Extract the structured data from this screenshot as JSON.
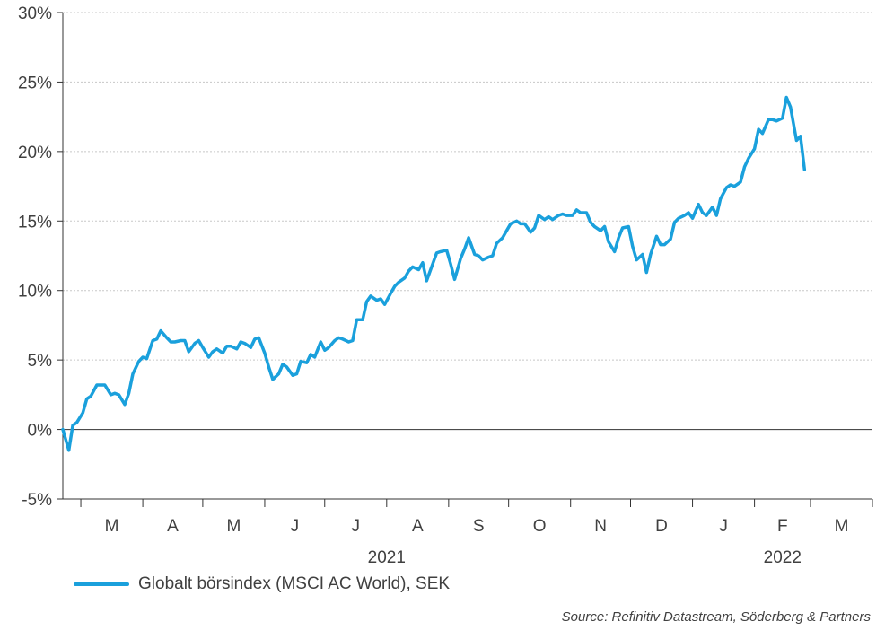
{
  "chart_data": {
    "type": "line",
    "y_ticks": [
      "-5%",
      "0%",
      "5%",
      "10%",
      "15%",
      "20%",
      "25%",
      "30%"
    ],
    "y_tick_values": [
      -5,
      0,
      5,
      10,
      15,
      20,
      25,
      30
    ],
    "ylim": [
      -5,
      30
    ],
    "x_month_labels": [
      "M",
      "A",
      "M",
      "J",
      "J",
      "A",
      "S",
      "O",
      "N",
      "D",
      "J",
      "F",
      "M"
    ],
    "x_year_labels": [
      "2021",
      "2022"
    ],
    "xlim": [
      "2021-02-19",
      "2022-03-31"
    ],
    "grid": "horizontal dotted",
    "legend_position": "bottom-left",
    "series": [
      {
        "name": "Globalt börsindex (MSCI AC World), SEK",
        "color": "#1aa0dc",
        "points": [
          [
            "2021-02-19",
            0.0
          ],
          [
            "2021-02-22",
            -1.5
          ],
          [
            "2021-02-24",
            0.3
          ],
          [
            "2021-02-26",
            0.5
          ],
          [
            "2021-03-01",
            1.2
          ],
          [
            "2021-03-03",
            2.2
          ],
          [
            "2021-03-05",
            2.4
          ],
          [
            "2021-03-08",
            3.2
          ],
          [
            "2021-03-10",
            3.2
          ],
          [
            "2021-03-12",
            3.2
          ],
          [
            "2021-03-15",
            2.5
          ],
          [
            "2021-03-17",
            2.6
          ],
          [
            "2021-03-19",
            2.5
          ],
          [
            "2021-03-22",
            1.8
          ],
          [
            "2021-03-24",
            2.6
          ],
          [
            "2021-03-26",
            4.0
          ],
          [
            "2021-03-29",
            4.9
          ],
          [
            "2021-03-31",
            5.2
          ],
          [
            "2021-04-02",
            5.1
          ],
          [
            "2021-04-05",
            6.4
          ],
          [
            "2021-04-07",
            6.5
          ],
          [
            "2021-04-09",
            7.1
          ],
          [
            "2021-04-12",
            6.6
          ],
          [
            "2021-04-14",
            6.3
          ],
          [
            "2021-04-16",
            6.3
          ],
          [
            "2021-04-19",
            6.4
          ],
          [
            "2021-04-21",
            6.4
          ],
          [
            "2021-04-23",
            5.6
          ],
          [
            "2021-04-26",
            6.2
          ],
          [
            "2021-04-28",
            6.4
          ],
          [
            "2021-04-30",
            5.9
          ],
          [
            "2021-05-03",
            5.2
          ],
          [
            "2021-05-05",
            5.6
          ],
          [
            "2021-05-07",
            5.8
          ],
          [
            "2021-05-10",
            5.5
          ],
          [
            "2021-05-12",
            6.0
          ],
          [
            "2021-05-14",
            6.0
          ],
          [
            "2021-05-17",
            5.8
          ],
          [
            "2021-05-19",
            6.3
          ],
          [
            "2021-05-21",
            6.2
          ],
          [
            "2021-05-24",
            5.9
          ],
          [
            "2021-05-26",
            6.5
          ],
          [
            "2021-05-28",
            6.6
          ],
          [
            "2021-05-31",
            5.5
          ],
          [
            "2021-06-02",
            4.5
          ],
          [
            "2021-06-04",
            3.6
          ],
          [
            "2021-06-07",
            4.0
          ],
          [
            "2021-06-09",
            4.7
          ],
          [
            "2021-06-11",
            4.5
          ],
          [
            "2021-06-14",
            3.9
          ],
          [
            "2021-06-16",
            4.0
          ],
          [
            "2021-06-18",
            4.9
          ],
          [
            "2021-06-21",
            4.8
          ],
          [
            "2021-06-23",
            5.4
          ],
          [
            "2021-06-25",
            5.2
          ],
          [
            "2021-06-28",
            6.3
          ],
          [
            "2021-06-30",
            5.7
          ],
          [
            "2021-07-02",
            5.9
          ],
          [
            "2021-07-05",
            6.4
          ],
          [
            "2021-07-07",
            6.6
          ],
          [
            "2021-07-09",
            6.5
          ],
          [
            "2021-07-12",
            6.3
          ],
          [
            "2021-07-14",
            6.4
          ],
          [
            "2021-07-16",
            7.9
          ],
          [
            "2021-07-19",
            7.9
          ],
          [
            "2021-07-21",
            9.2
          ],
          [
            "2021-07-23",
            9.6
          ],
          [
            "2021-07-26",
            9.3
          ],
          [
            "2021-07-28",
            9.4
          ],
          [
            "2021-07-30",
            9.0
          ],
          [
            "2021-08-02",
            9.8
          ],
          [
            "2021-08-04",
            10.3
          ],
          [
            "2021-08-06",
            10.6
          ],
          [
            "2021-08-09",
            10.9
          ],
          [
            "2021-08-11",
            11.4
          ],
          [
            "2021-08-13",
            11.7
          ],
          [
            "2021-08-16",
            11.5
          ],
          [
            "2021-08-18",
            12.0
          ],
          [
            "2021-08-20",
            10.7
          ],
          [
            "2021-08-23",
            11.9
          ],
          [
            "2021-08-25",
            12.7
          ],
          [
            "2021-08-27",
            12.8
          ],
          [
            "2021-08-30",
            12.9
          ],
          [
            "2021-09-01",
            11.9
          ],
          [
            "2021-09-03",
            10.8
          ],
          [
            "2021-09-06",
            12.3
          ],
          [
            "2021-09-08",
            13.0
          ],
          [
            "2021-09-10",
            13.8
          ],
          [
            "2021-09-13",
            12.6
          ],
          [
            "2021-09-15",
            12.5
          ],
          [
            "2021-09-17",
            12.2
          ],
          [
            "2021-09-20",
            12.4
          ],
          [
            "2021-09-22",
            12.5
          ],
          [
            "2021-09-24",
            13.4
          ],
          [
            "2021-09-27",
            13.8
          ],
          [
            "2021-09-29",
            14.3
          ],
          [
            "2021-10-01",
            14.8
          ],
          [
            "2021-10-04",
            15.0
          ],
          [
            "2021-10-06",
            14.8
          ],
          [
            "2021-10-08",
            14.8
          ],
          [
            "2021-10-11",
            14.2
          ],
          [
            "2021-10-13",
            14.5
          ],
          [
            "2021-10-15",
            15.4
          ],
          [
            "2021-10-18",
            15.1
          ],
          [
            "2021-10-20",
            15.3
          ],
          [
            "2021-10-22",
            15.1
          ],
          [
            "2021-10-25",
            15.4
          ],
          [
            "2021-10-27",
            15.5
          ],
          [
            "2021-10-29",
            15.4
          ],
          [
            "2021-11-01",
            15.4
          ],
          [
            "2021-11-03",
            15.8
          ],
          [
            "2021-11-05",
            15.6
          ],
          [
            "2021-11-08",
            15.6
          ],
          [
            "2021-11-10",
            14.9
          ],
          [
            "2021-11-12",
            14.6
          ],
          [
            "2021-11-15",
            14.3
          ],
          [
            "2021-11-17",
            14.6
          ],
          [
            "2021-11-19",
            13.5
          ],
          [
            "2021-11-22",
            12.8
          ],
          [
            "2021-11-24",
            13.8
          ],
          [
            "2021-11-26",
            14.5
          ],
          [
            "2021-11-29",
            14.6
          ],
          [
            "2021-12-01",
            13.2
          ],
          [
            "2021-12-03",
            12.2
          ],
          [
            "2021-12-06",
            12.6
          ],
          [
            "2021-12-08",
            11.3
          ],
          [
            "2021-12-10",
            12.6
          ],
          [
            "2021-12-13",
            13.9
          ],
          [
            "2021-12-15",
            13.3
          ],
          [
            "2021-12-17",
            13.3
          ],
          [
            "2021-12-20",
            13.7
          ],
          [
            "2021-12-22",
            14.9
          ],
          [
            "2021-12-24",
            15.2
          ],
          [
            "2021-12-27",
            15.4
          ],
          [
            "2021-12-29",
            15.6
          ],
          [
            "2021-12-31",
            15.2
          ],
          [
            "2022-01-03",
            16.2
          ],
          [
            "2022-01-05",
            15.6
          ],
          [
            "2022-01-07",
            15.4
          ],
          [
            "2022-01-10",
            16.0
          ],
          [
            "2022-01-12",
            15.4
          ],
          [
            "2022-01-14",
            16.6
          ],
          [
            "2022-01-17",
            17.4
          ],
          [
            "2022-01-19",
            17.6
          ],
          [
            "2022-01-21",
            17.5
          ],
          [
            "2022-01-24",
            17.8
          ],
          [
            "2022-01-26",
            18.9
          ],
          [
            "2022-01-28",
            19.5
          ],
          [
            "2022-01-31",
            20.2
          ],
          [
            "2022-02-02",
            21.6
          ],
          [
            "2022-02-04",
            21.3
          ],
          [
            "2022-02-07",
            22.3
          ],
          [
            "2022-02-09",
            22.3
          ],
          [
            "2022-02-11",
            22.2
          ],
          [
            "2022-02-14",
            22.4
          ],
          [
            "2022-02-16",
            23.9
          ],
          [
            "2022-02-18",
            23.2
          ],
          [
            "2022-02-21",
            20.8
          ],
          [
            "2022-02-23",
            21.1
          ],
          [
            "2022-02-25",
            18.7
          ]
        ]
      }
    ],
    "source_text": "Source: Refinitiv Datastream, Söderberg & Partners"
  },
  "colors": {
    "line": "#1aa0dc",
    "axis": "#333333",
    "grid": "#c8c8c8",
    "text": "#404040"
  }
}
